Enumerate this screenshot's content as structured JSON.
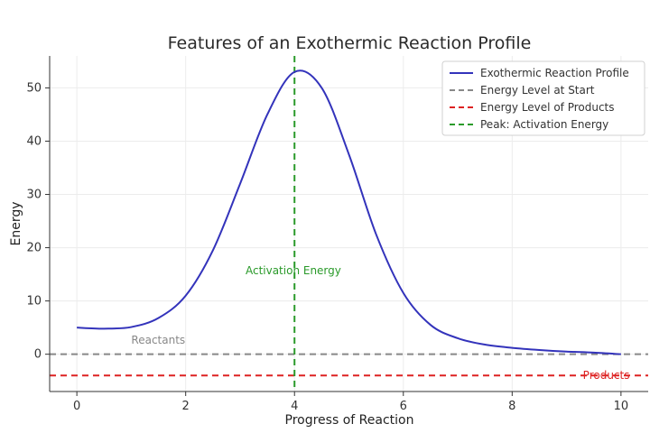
{
  "chart_data": {
    "type": "line",
    "title": "Features of an Exothermic Reaction Profile",
    "xlabel": "Progress of Reaction",
    "ylabel": "Energy",
    "xlim": [
      -0.5,
      10.5
    ],
    "ylim": [
      -7,
      56
    ],
    "xticks": [
      0,
      2,
      4,
      6,
      8,
      10
    ],
    "yticks": [
      0,
      10,
      20,
      30,
      40,
      50
    ],
    "grid": true,
    "legend_position": "top-right",
    "series": [
      {
        "name": "Exothermic Reaction Profile",
        "color": "#3333bb",
        "style": "solid",
        "x": [
          0,
          0.5,
          1,
          1.5,
          2,
          2.5,
          3,
          3.5,
          4,
          4.5,
          5,
          5.5,
          6,
          6.5,
          7,
          7.5,
          8,
          8.5,
          9,
          9.5,
          10
        ],
        "y": [
          5,
          4.8,
          5.1,
          6.8,
          11,
          19.5,
          32,
          45,
          53,
          50,
          37.5,
          22.5,
          11.5,
          5.5,
          3,
          1.8,
          1.2,
          0.8,
          0.5,
          0.3,
          0
        ]
      },
      {
        "name": "Energy Level at Start",
        "color": "#888888",
        "style": "dashed",
        "y": 0
      },
      {
        "name": "Energy Level of Products",
        "color": "#dd2222",
        "style": "dashed",
        "y": -4
      },
      {
        "name": "Peak: Activation Energy",
        "color": "#2a9a2a",
        "style": "dashed",
        "x": 4
      }
    ],
    "annotations": [
      {
        "text": "Reactants",
        "x": 1,
        "y": 2,
        "color": "#888888"
      },
      {
        "text": "Activation Energy",
        "x": 3.1,
        "y": 15,
        "color": "#2a9a2a"
      },
      {
        "text": "Products",
        "x": 9.3,
        "y": -4.6,
        "color": "#dd2222"
      }
    ]
  }
}
